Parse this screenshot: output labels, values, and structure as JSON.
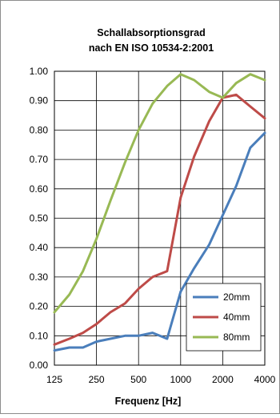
{
  "chart_data": {
    "type": "line",
    "title_lines": [
      "Schallabsorptionsgrad",
      "nach EN ISO 10534-2:2001"
    ],
    "xlabel": "Frequenz [Hz]",
    "ylabel": "",
    "x_scale": "log",
    "xlim": [
      125,
      4000
    ],
    "ylim": [
      0,
      1
    ],
    "grid": true,
    "legend_position": "bottom-right",
    "x_ticks": [
      125,
      250,
      500,
      1000,
      2000,
      4000
    ],
    "x_tick_labels": [
      "125",
      "250",
      "500",
      "1000",
      "2000",
      "4000"
    ],
    "y_ticks": [
      0,
      0.1,
      0.2,
      0.3,
      0.4,
      0.5,
      0.6,
      0.7,
      0.8,
      0.9,
      1.0
    ],
    "y_tick_labels": [
      "0.00",
      "0.10",
      "0.20",
      "0.30",
      "0.40",
      "0.50",
      "0.60",
      "0.70",
      "0.80",
      "0.90",
      "1.00"
    ],
    "x": [
      125,
      160,
      200,
      250,
      315,
      400,
      500,
      630,
      800,
      1000,
      1250,
      1600,
      2000,
      2500,
      3150,
      4000
    ],
    "series": [
      {
        "name": "20mm",
        "color": "#4a7ebb",
        "values": [
          0.05,
          0.06,
          0.06,
          0.08,
          0.09,
          0.1,
          0.1,
          0.11,
          0.09,
          0.25,
          0.33,
          0.41,
          0.51,
          0.61,
          0.74,
          0.79
        ]
      },
      {
        "name": "40mm",
        "color": "#be4b48",
        "values": [
          0.07,
          0.09,
          0.11,
          0.14,
          0.18,
          0.21,
          0.26,
          0.3,
          0.32,
          0.57,
          0.71,
          0.83,
          0.91,
          0.92,
          0.88,
          0.84
        ]
      },
      {
        "name": "80mm",
        "color": "#98b954",
        "values": [
          0.18,
          0.24,
          0.32,
          0.43,
          0.56,
          0.69,
          0.8,
          0.89,
          0.95,
          0.99,
          0.97,
          0.93,
          0.91,
          0.96,
          0.99,
          0.97
        ]
      }
    ]
  }
}
